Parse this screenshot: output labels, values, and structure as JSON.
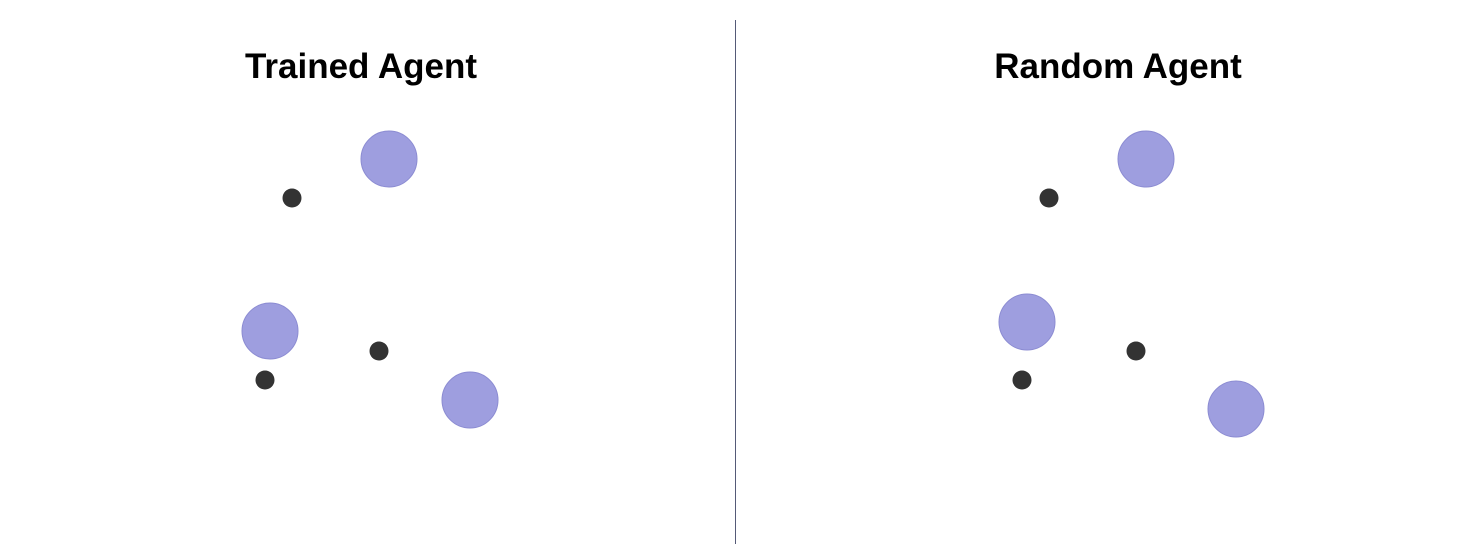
{
  "panels": [
    {
      "id": "trained",
      "title": "Trained Agent"
    },
    {
      "id": "random",
      "title": "Random Agent"
    }
  ],
  "colors": {
    "background": "#ffffff",
    "landmark": "#9e9edf",
    "landmark_stroke": "#8c8cd2",
    "agent": "#333333",
    "divider": "#555a77",
    "title": "#000000"
  },
  "entities": {
    "landmark_shape": "large-circle",
    "agent_shape": "small-dot"
  }
}
